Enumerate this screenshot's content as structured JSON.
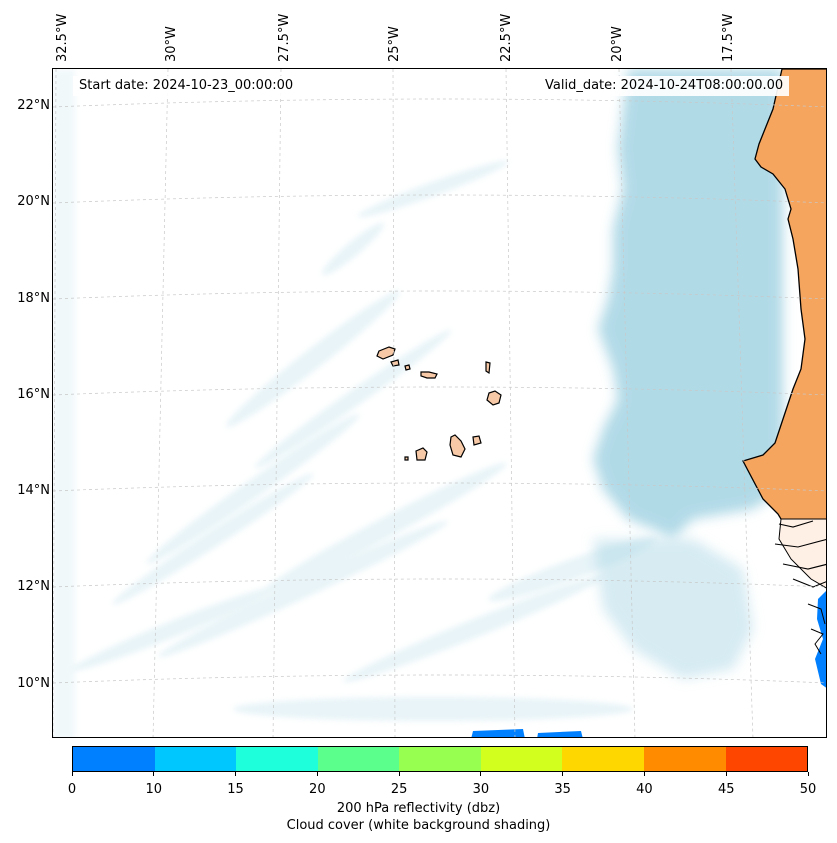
{
  "map": {
    "start_date": "Start date: 2024-10-23_00:00:00",
    "valid_date": "Valid_date: 2024-10-24T08:00:00.00",
    "longitude_labels": [
      "32.5°W",
      "30°W",
      "27.5°W",
      "25°W",
      "22.5°W",
      "20°W",
      "17.5°W"
    ],
    "latitude_labels": [
      "22°N",
      "20°N",
      "18°N",
      "16°N",
      "14°N",
      "12°N",
      "10°N"
    ],
    "colors": {
      "land": "#f5a55e",
      "cloud": "#add8e6",
      "low_reflectivity": "#0080ff",
      "coastline": "#000000"
    }
  },
  "colorbar": {
    "ticks": [
      "0",
      "10",
      "15",
      "20",
      "25",
      "30",
      "35",
      "40",
      "45",
      "50"
    ],
    "colors": [
      "#0080ff",
      "#00c8ff",
      "#1effdc",
      "#5aff8c",
      "#96ff50",
      "#d2ff1e",
      "#ffd700",
      "#ff8c00",
      "#ff4600"
    ],
    "label": "200 hPa reflectivity (dbz)",
    "sublabel": "Cloud cover (white background shading)"
  }
}
